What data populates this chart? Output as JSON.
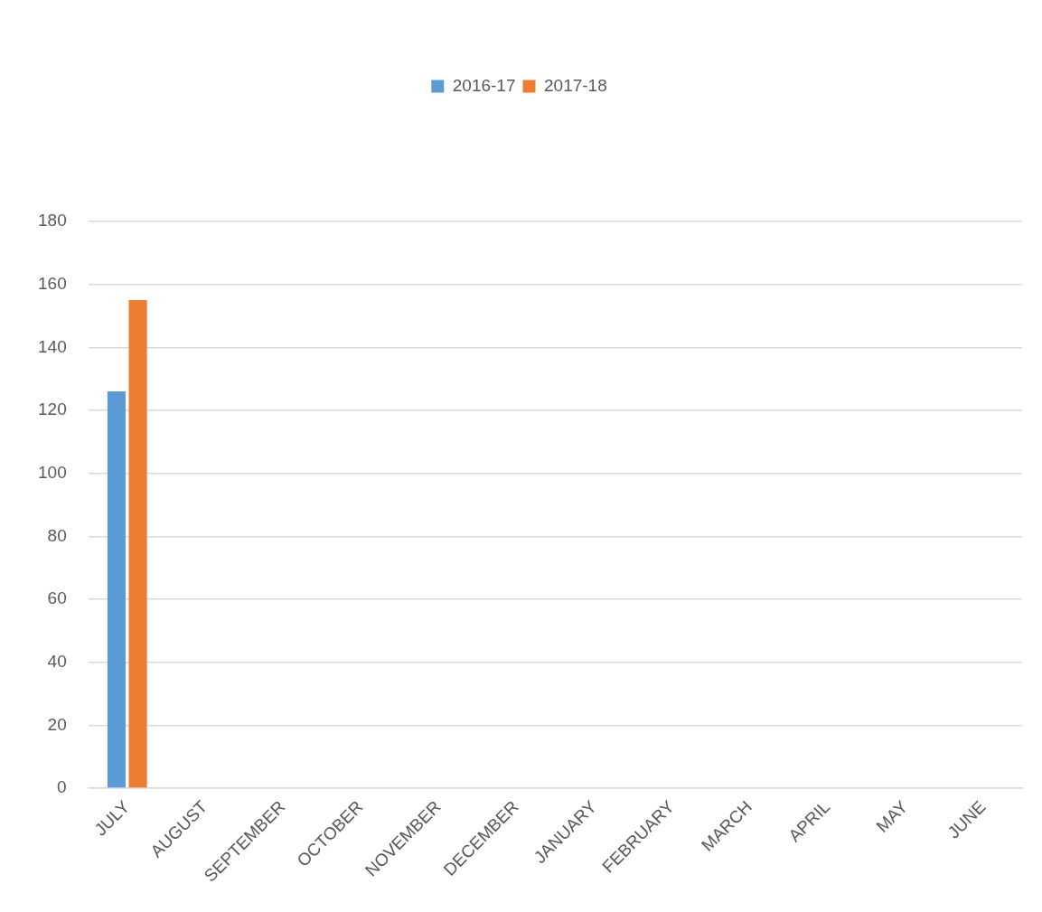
{
  "chart_data": {
    "type": "bar",
    "categories": [
      "JULY",
      "AUGUST",
      "SEPTEMBER",
      "OCTOBER",
      "NOVEMBER",
      "DECEMBER",
      "JANUARY",
      "FEBRUARY",
      "MARCH",
      "APRIL",
      "MAY",
      "JUNE"
    ],
    "series": [
      {
        "name": "2016-17",
        "color": "#5b9bd5",
        "values": [
          126,
          null,
          null,
          null,
          null,
          null,
          null,
          null,
          null,
          null,
          null,
          null
        ]
      },
      {
        "name": "2017-18",
        "color": "#ed7d31",
        "values": [
          155,
          null,
          null,
          null,
          null,
          null,
          null,
          null,
          null,
          null,
          null,
          null
        ]
      }
    ],
    "ylim": [
      0,
      180
    ],
    "yticks": [
      0,
      20,
      40,
      60,
      80,
      100,
      120,
      140,
      160,
      180
    ],
    "grid": "y",
    "legend": "top"
  }
}
